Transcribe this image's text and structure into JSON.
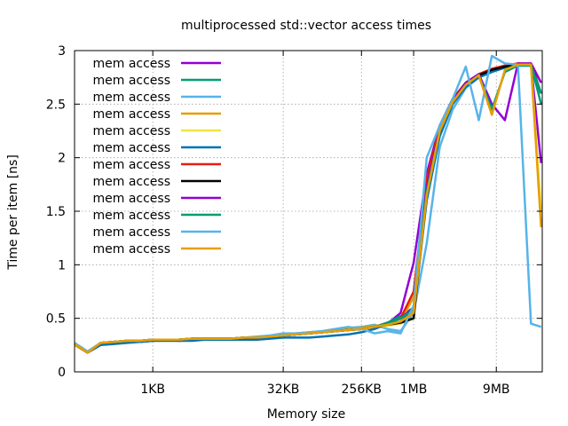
{
  "chart_data": {
    "type": "line",
    "title": "multiprocessed std::vector access times",
    "xlabel": "Memory size",
    "ylabel": "Time per item [ns]",
    "x_scale": "log2",
    "x_unit": "bytes",
    "xlim": [
      128,
      32000000
    ],
    "ylim": [
      0,
      3
    ],
    "y_ticks": [
      0,
      0.5,
      1,
      1.5,
      2,
      2.5,
      3
    ],
    "x_ticks": [
      {
        "label": "1KB",
        "value": 1024
      },
      {
        "label": "32KB",
        "value": 32768
      },
      {
        "label": "256KB",
        "value": 262144
      },
      {
        "label": "1MB",
        "value": 1048576
      },
      {
        "label": "9MB",
        "value": 9437184
      }
    ],
    "grid": true,
    "legend_position": "top-left",
    "x": [
      128,
      181,
      256,
      362,
      512,
      724,
      1024,
      1448,
      2048,
      2896,
      4096,
      5793,
      8192,
      11585,
      16384,
      23170,
      32768,
      46341,
      65536,
      92682,
      131072,
      185364,
      262144,
      370728,
      524288,
      741455,
      1048576,
      1482910,
      2097152,
      2965821,
      4194304,
      5931642,
      8388608,
      11863283,
      16777216,
      23726566,
      31000000
    ],
    "series": [
      {
        "name": "mem access",
        "color": "#9400d3",
        "values": [
          0.25,
          0.18,
          0.27,
          0.28,
          0.29,
          0.28,
          0.29,
          0.3,
          0.29,
          0.3,
          0.3,
          0.31,
          0.3,
          0.31,
          0.31,
          0.32,
          0.34,
          0.35,
          0.36,
          0.37,
          0.38,
          0.39,
          0.4,
          0.42,
          0.45,
          0.55,
          1.02,
          1.85,
          2.3,
          2.55,
          2.68,
          2.77,
          2.82,
          2.85,
          2.88,
          2.87,
          1.95
        ]
      },
      {
        "name": "mem access",
        "color": "#009e73",
        "values": [
          0.26,
          0.18,
          0.26,
          0.28,
          0.29,
          0.29,
          0.3,
          0.3,
          0.3,
          0.31,
          0.31,
          0.31,
          0.31,
          0.32,
          0.32,
          0.33,
          0.34,
          0.35,
          0.36,
          0.37,
          0.38,
          0.39,
          0.4,
          0.42,
          0.46,
          0.52,
          0.6,
          1.7,
          2.25,
          2.55,
          2.7,
          2.78,
          2.82,
          2.85,
          2.87,
          2.87,
          2.5
        ]
      },
      {
        "name": "mem access",
        "color": "#56b4e9",
        "values": [
          0.27,
          0.19,
          0.27,
          0.28,
          0.29,
          0.29,
          0.3,
          0.3,
          0.3,
          0.31,
          0.31,
          0.31,
          0.31,
          0.32,
          0.32,
          0.33,
          0.35,
          0.36,
          0.37,
          0.38,
          0.4,
          0.41,
          0.42,
          0.44,
          0.4,
          0.38,
          0.55,
          1.2,
          2.1,
          2.45,
          2.65,
          2.75,
          2.8,
          2.85,
          2.87,
          2.87,
          2.6
        ]
      },
      {
        "name": "mem access",
        "color": "#e69f00",
        "values": [
          0.26,
          0.18,
          0.27,
          0.28,
          0.28,
          0.29,
          0.3,
          0.3,
          0.3,
          0.31,
          0.31,
          0.31,
          0.31,
          0.32,
          0.32,
          0.33,
          0.34,
          0.35,
          0.36,
          0.37,
          0.38,
          0.4,
          0.41,
          0.43,
          0.44,
          0.47,
          0.7,
          1.75,
          2.28,
          2.53,
          2.68,
          2.77,
          2.82,
          2.86,
          2.88,
          2.87,
          2.7
        ]
      },
      {
        "name": "mem access",
        "color": "#f0e442",
        "values": [
          0.25,
          0.18,
          0.26,
          0.28,
          0.29,
          0.29,
          0.3,
          0.3,
          0.3,
          0.31,
          0.31,
          0.31,
          0.31,
          0.32,
          0.32,
          0.33,
          0.34,
          0.35,
          0.36,
          0.37,
          0.38,
          0.39,
          0.4,
          0.42,
          0.43,
          0.45,
          0.5,
          1.65,
          2.22,
          2.52,
          2.68,
          2.77,
          2.82,
          2.85,
          2.87,
          2.86,
          1.5
        ]
      },
      {
        "name": "mem access",
        "color": "#0072b2",
        "values": [
          0.26,
          0.18,
          0.25,
          0.26,
          0.27,
          0.28,
          0.29,
          0.29,
          0.29,
          0.29,
          0.3,
          0.3,
          0.3,
          0.3,
          0.3,
          0.31,
          0.32,
          0.32,
          0.32,
          0.33,
          0.34,
          0.35,
          0.37,
          0.4,
          0.45,
          0.5,
          0.55,
          1.6,
          2.2,
          2.5,
          2.66,
          2.75,
          2.8,
          2.84,
          2.86,
          2.86,
          2.6
        ]
      },
      {
        "name": "mem access",
        "color": "#e51e10",
        "values": [
          0.26,
          0.18,
          0.27,
          0.28,
          0.29,
          0.29,
          0.3,
          0.3,
          0.3,
          0.31,
          0.31,
          0.31,
          0.31,
          0.32,
          0.32,
          0.33,
          0.34,
          0.35,
          0.36,
          0.37,
          0.38,
          0.39,
          0.4,
          0.42,
          0.45,
          0.5,
          0.75,
          1.8,
          2.3,
          2.55,
          2.7,
          2.78,
          2.83,
          2.86,
          2.88,
          2.88,
          2.7
        ]
      },
      {
        "name": "mem access",
        "color": "#000000",
        "values": [
          0.26,
          0.18,
          0.27,
          0.28,
          0.29,
          0.29,
          0.3,
          0.3,
          0.3,
          0.31,
          0.31,
          0.31,
          0.31,
          0.32,
          0.32,
          0.33,
          0.34,
          0.35,
          0.36,
          0.37,
          0.38,
          0.39,
          0.4,
          0.42,
          0.44,
          0.46,
          0.5,
          1.7,
          2.25,
          2.52,
          2.68,
          2.77,
          2.82,
          2.85,
          2.87,
          2.87,
          2.6
        ]
      },
      {
        "name": "mem access",
        "color": "#9400d3",
        "values": [
          0.26,
          0.18,
          0.27,
          0.28,
          0.29,
          0.29,
          0.3,
          0.3,
          0.3,
          0.31,
          0.31,
          0.31,
          0.31,
          0.32,
          0.32,
          0.33,
          0.34,
          0.35,
          0.36,
          0.37,
          0.38,
          0.39,
          0.4,
          0.42,
          0.45,
          0.5,
          0.6,
          1.72,
          2.27,
          2.53,
          2.7,
          2.78,
          2.5,
          2.35,
          2.88,
          2.88,
          2.7
        ]
      },
      {
        "name": "mem access",
        "color": "#009e73",
        "values": [
          0.26,
          0.18,
          0.27,
          0.28,
          0.29,
          0.29,
          0.3,
          0.3,
          0.3,
          0.31,
          0.31,
          0.31,
          0.31,
          0.32,
          0.32,
          0.33,
          0.34,
          0.35,
          0.36,
          0.37,
          0.38,
          0.39,
          0.4,
          0.42,
          0.45,
          0.5,
          0.58,
          1.68,
          2.25,
          2.52,
          2.68,
          2.77,
          2.45,
          2.8,
          2.86,
          2.86,
          2.6
        ]
      },
      {
        "name": "mem access",
        "color": "#56b4e9",
        "values": [
          0.27,
          0.19,
          0.27,
          0.28,
          0.29,
          0.29,
          0.3,
          0.3,
          0.3,
          0.31,
          0.31,
          0.31,
          0.31,
          0.32,
          0.33,
          0.34,
          0.36,
          0.36,
          0.37,
          0.38,
          0.4,
          0.42,
          0.4,
          0.36,
          0.38,
          0.36,
          0.62,
          2.0,
          2.3,
          2.55,
          2.85,
          2.35,
          2.95,
          2.88,
          2.87,
          0.45,
          0.42
        ]
      },
      {
        "name": "mem access",
        "color": "#e69f00",
        "values": [
          0.26,
          0.18,
          0.27,
          0.28,
          0.29,
          0.29,
          0.3,
          0.3,
          0.3,
          0.31,
          0.31,
          0.31,
          0.31,
          0.32,
          0.32,
          0.33,
          0.34,
          0.35,
          0.36,
          0.37,
          0.38,
          0.39,
          0.4,
          0.42,
          0.44,
          0.47,
          0.55,
          1.65,
          2.25,
          2.52,
          2.68,
          2.77,
          2.4,
          2.82,
          2.87,
          2.87,
          1.35
        ]
      }
    ]
  }
}
